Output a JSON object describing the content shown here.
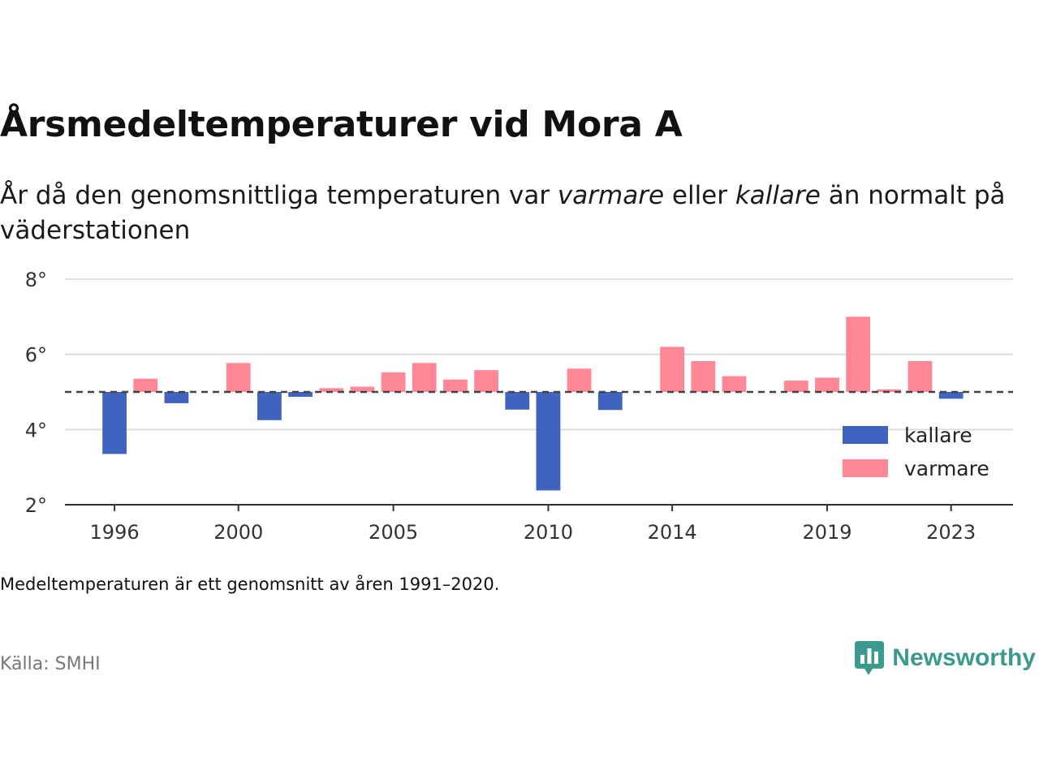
{
  "header": {
    "title": "Årsmedeltemperaturer vid Mora A",
    "subtitle_part1": "År då den genomsnittliga temperaturen var ",
    "subtitle_warm": "varmare",
    "subtitle_part2": " eller ",
    "subtitle_cold": "kallare",
    "subtitle_part3": " än normalt på väderstationen"
  },
  "footer": {
    "note": "Medeltemperaturen är ett genomsnitt av åren 1991–2020.",
    "source": "Källa: SMHI",
    "brand": "Newsworthy"
  },
  "colors": {
    "kallare": "#4063bf",
    "varmare": "#ff8796",
    "brand": "#3a9a8e"
  },
  "icons": {
    "brand_logo": "speech-bubble-bar-chart-icon"
  },
  "chart_data": {
    "type": "bar",
    "title": "Årsmedeltemperaturer vid Mora A",
    "baseline": 5.0,
    "baseline_style": "dashed",
    "ylim": [
      2,
      8
    ],
    "yticks": [
      2,
      4,
      6,
      8
    ],
    "ytick_labels": [
      "2°",
      "4°",
      "6°",
      "8°"
    ],
    "xlim": [
      1994.4,
      2025.0
    ],
    "xticks": [
      1996,
      2000,
      2005,
      2010,
      2014,
      2019,
      2023
    ],
    "xtick_labels": [
      "1996",
      "2000",
      "2005",
      "2010",
      "2014",
      "2019",
      "2023"
    ],
    "grid": true,
    "legend_position": "bottom-right",
    "legend": [
      {
        "key": "kallare",
        "label": "kallare"
      },
      {
        "key": "varmare",
        "label": "varmare"
      }
    ],
    "bars": [
      {
        "year": 1996,
        "value": 3.35,
        "category": "kallare"
      },
      {
        "year": 1997,
        "value": 5.35,
        "category": "varmare"
      },
      {
        "year": 1998,
        "value": 4.7,
        "category": "kallare"
      },
      {
        "year": 2000,
        "value": 5.77,
        "category": "varmare"
      },
      {
        "year": 2001,
        "value": 4.25,
        "category": "kallare"
      },
      {
        "year": 2002,
        "value": 4.87,
        "category": "kallare"
      },
      {
        "year": 2003,
        "value": 5.1,
        "category": "varmare"
      },
      {
        "year": 2004,
        "value": 5.14,
        "category": "varmare"
      },
      {
        "year": 2005,
        "value": 5.52,
        "category": "varmare"
      },
      {
        "year": 2006,
        "value": 5.77,
        "category": "varmare"
      },
      {
        "year": 2007,
        "value": 5.33,
        "category": "varmare"
      },
      {
        "year": 2008,
        "value": 5.58,
        "category": "varmare"
      },
      {
        "year": 2009,
        "value": 4.53,
        "category": "kallare"
      },
      {
        "year": 2010,
        "value": 2.38,
        "category": "kallare"
      },
      {
        "year": 2011,
        "value": 5.62,
        "category": "varmare"
      },
      {
        "year": 2012,
        "value": 4.52,
        "category": "kallare"
      },
      {
        "year": 2014,
        "value": 6.2,
        "category": "varmare"
      },
      {
        "year": 2015,
        "value": 5.82,
        "category": "varmare"
      },
      {
        "year": 2016,
        "value": 5.42,
        "category": "varmare"
      },
      {
        "year": 2018,
        "value": 5.3,
        "category": "varmare"
      },
      {
        "year": 2019,
        "value": 5.38,
        "category": "varmare"
      },
      {
        "year": 2020,
        "value": 7.0,
        "category": "varmare"
      },
      {
        "year": 2021,
        "value": 5.07,
        "category": "varmare"
      },
      {
        "year": 2022,
        "value": 5.82,
        "category": "varmare"
      },
      {
        "year": 2023,
        "value": 4.82,
        "category": "kallare"
      }
    ]
  }
}
